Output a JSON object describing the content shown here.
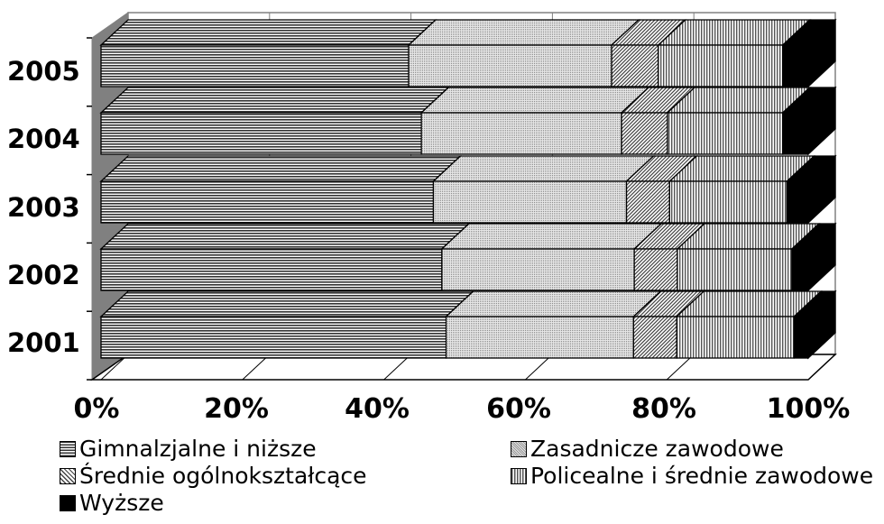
{
  "chart_data": {
    "type": "bar",
    "orientation": "horizontal",
    "stacked": "percent",
    "three_d": true,
    "categories": [
      "2005",
      "2004",
      "2003",
      "2002",
      "2001"
    ],
    "series": [
      {
        "name": "Gimnalzjalne i niższe",
        "values": [
          43.5,
          45.3,
          47.0,
          48.2,
          48.8
        ],
        "pattern": "hstripe"
      },
      {
        "name": "Zasadnicze zawodowe",
        "values": [
          28.7,
          28.3,
          27.3,
          27.2,
          26.5
        ],
        "pattern": "dots"
      },
      {
        "name": "Średnie ogólnokształcące",
        "values": [
          6.6,
          6.5,
          6.1,
          6.1,
          6.1
        ],
        "pattern": "diag"
      },
      {
        "name": "Policealne i średnie zawodowe",
        "values": [
          17.6,
          16.3,
          16.6,
          16.2,
          16.6
        ],
        "pattern": "vstripe"
      },
      {
        "name": "Wyższe",
        "values": [
          3.6,
          3.6,
          3.0,
          2.3,
          2.0
        ],
        "pattern": "solid"
      }
    ],
    "x_ticks": [
      "0%",
      "20%",
      "40%",
      "60%",
      "80%",
      "100%"
    ],
    "xlim": [
      0,
      100
    ],
    "legend_position": "bottom",
    "gridlines": true
  }
}
